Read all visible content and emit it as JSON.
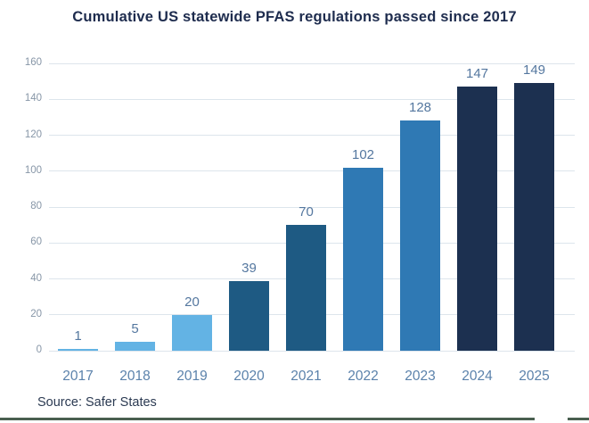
{
  "title": "Cumulative US statewide PFAS regulations passed since 2017",
  "source_note": "Source: Safer States",
  "colors": {
    "title_text": "#1e2c4e",
    "value_label_text": "#54779f",
    "x_tick_text": "#5b82ab",
    "y_tick_text": "#8796a7",
    "gridline": "#dde5ec",
    "source_text": "#2b3a52",
    "bottom_line": "#4a5f50",
    "light_blue": "#63b3e4",
    "steel_blue": "#1e5a83",
    "medium_blue": "#2f79b4",
    "navy": "#1c3050"
  },
  "chart_data": {
    "type": "bar",
    "title": "Cumulative US statewide PFAS regulations passed since 2017",
    "categories": [
      "2017",
      "2018",
      "2019",
      "2020",
      "2021",
      "2022",
      "2023",
      "2024",
      "2025"
    ],
    "values": [
      1,
      5,
      20,
      39,
      70,
      102,
      128,
      147,
      149
    ],
    "bar_colors": [
      "#63b3e4",
      "#63b3e4",
      "#63b3e4",
      "#1e5a83",
      "#1e5a83",
      "#2f79b4",
      "#2f79b4",
      "#1c3050",
      "#1c3050"
    ],
    "dot_texture_categories": [
      "2024",
      "2025"
    ],
    "value_labels_shown": true,
    "xlabel": "",
    "ylabel": "",
    "ylim": [
      0,
      160
    ],
    "ytick_step": 20,
    "yticks": [
      0,
      20,
      40,
      60,
      80,
      100,
      120,
      140,
      160
    ],
    "grid": true,
    "legend": "none"
  }
}
